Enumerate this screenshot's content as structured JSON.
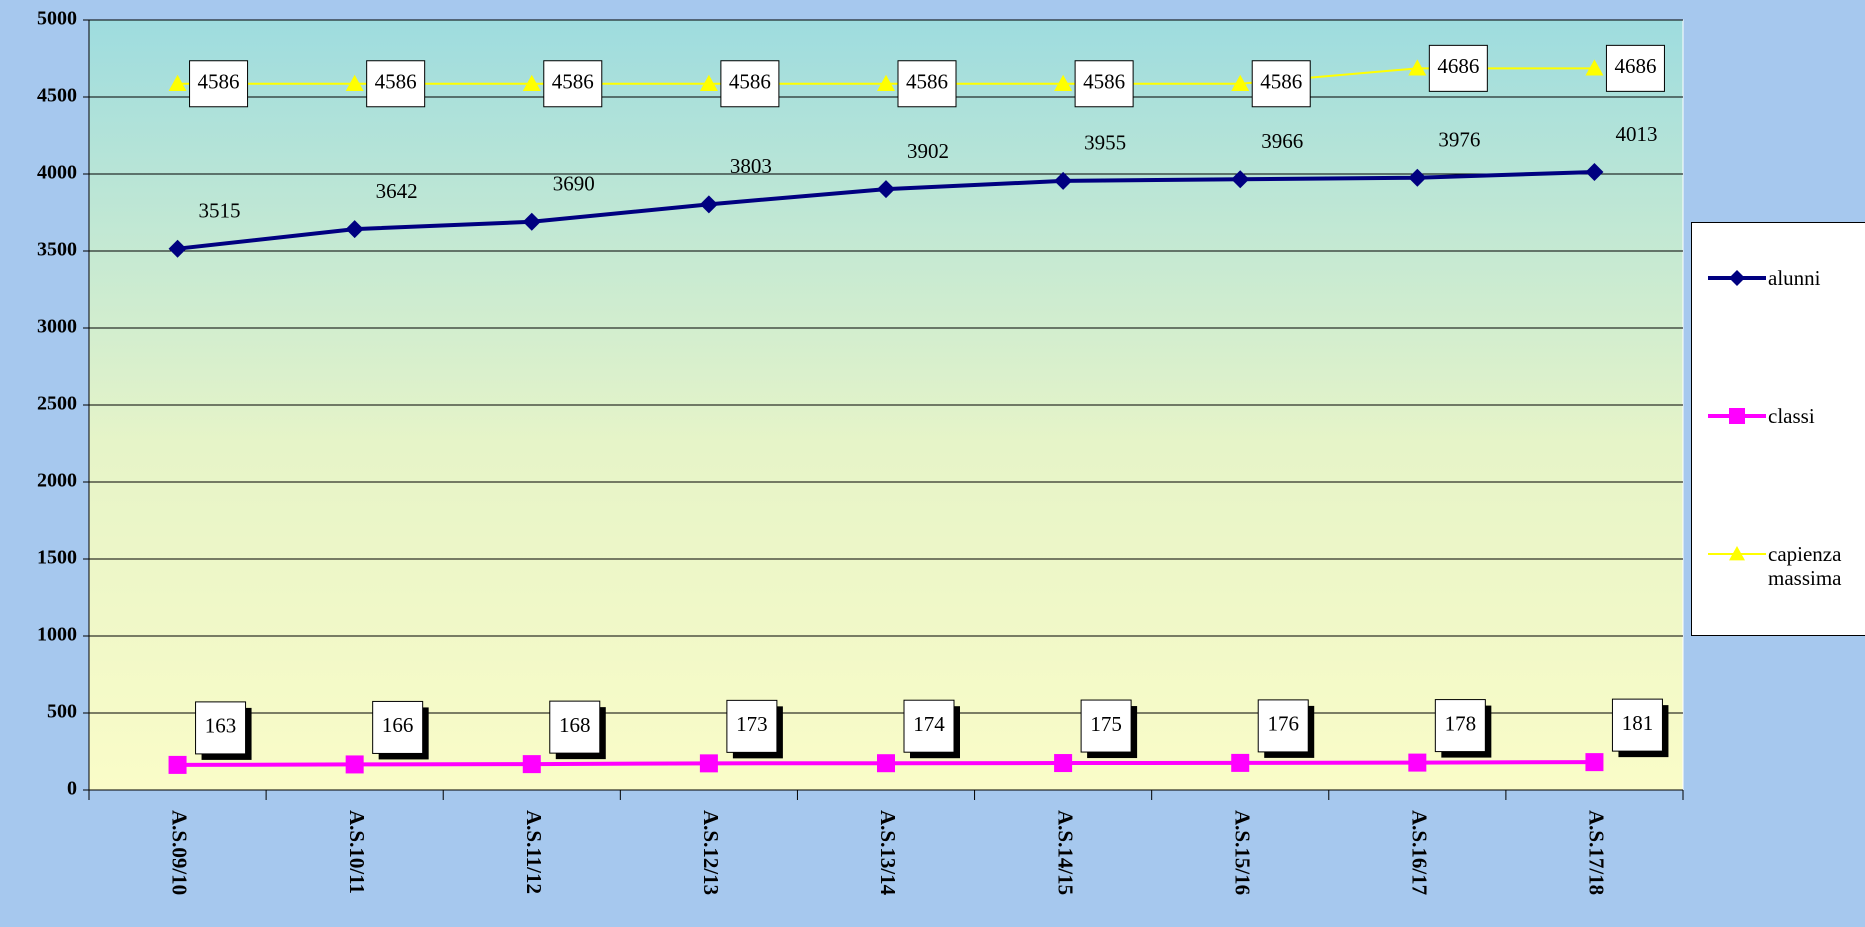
{
  "chart_data": {
    "type": "line",
    "categories": [
      "A.S.09/10",
      "A.S.10/11",
      "A.S.11/12",
      "A.S.12/13",
      "A.S.13/14",
      "A.S.14/15",
      "A.S.15/16",
      "A.S.16/17",
      "A.S.17/18"
    ],
    "series": [
      {
        "name": "alunni",
        "color": "#000080",
        "marker": "diamond",
        "values": [
          3515,
          3642,
          3690,
          3803,
          3902,
          3955,
          3966,
          3976,
          4013
        ]
      },
      {
        "name": "classi",
        "color": "#ff00ff",
        "marker": "square",
        "values": [
          163,
          166,
          168,
          173,
          174,
          175,
          176,
          178,
          181
        ]
      },
      {
        "name": "capienza massima",
        "color": "#ffff00",
        "marker": "triangle",
        "values": [
          4586,
          4586,
          4586,
          4586,
          4586,
          4586,
          4586,
          4686,
          4686
        ]
      }
    ],
    "ylim": [
      0,
      5000
    ],
    "yticks": [
      0,
      500,
      1000,
      1500,
      2000,
      2500,
      3000,
      3500,
      4000,
      4500,
      5000
    ],
    "grid": true,
    "legend": "right"
  }
}
